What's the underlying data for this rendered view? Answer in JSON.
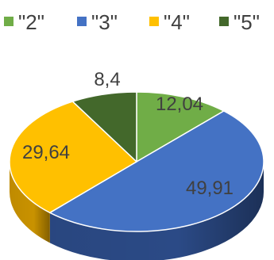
{
  "chart_data": {
    "type": "pie",
    "style": "3d",
    "legend_position": "top",
    "series": [
      {
        "name": "\"2\"",
        "value": 12.04,
        "label": "12,04",
        "color": "#70ad47",
        "side": "#4e7d31"
      },
      {
        "name": "\"3\"",
        "value": 49.91,
        "label": "49,91",
        "color": "#4472c4",
        "side": "#2b4a86"
      },
      {
        "name": "\"4\"",
        "value": 29.64,
        "label": "29,64",
        "color": "#ffc000",
        "side": "#c99200"
      },
      {
        "name": "\"5\"",
        "value": 8.4,
        "label": "8,4",
        "color": "#43682b",
        "side": "#2c461b"
      }
    ]
  }
}
